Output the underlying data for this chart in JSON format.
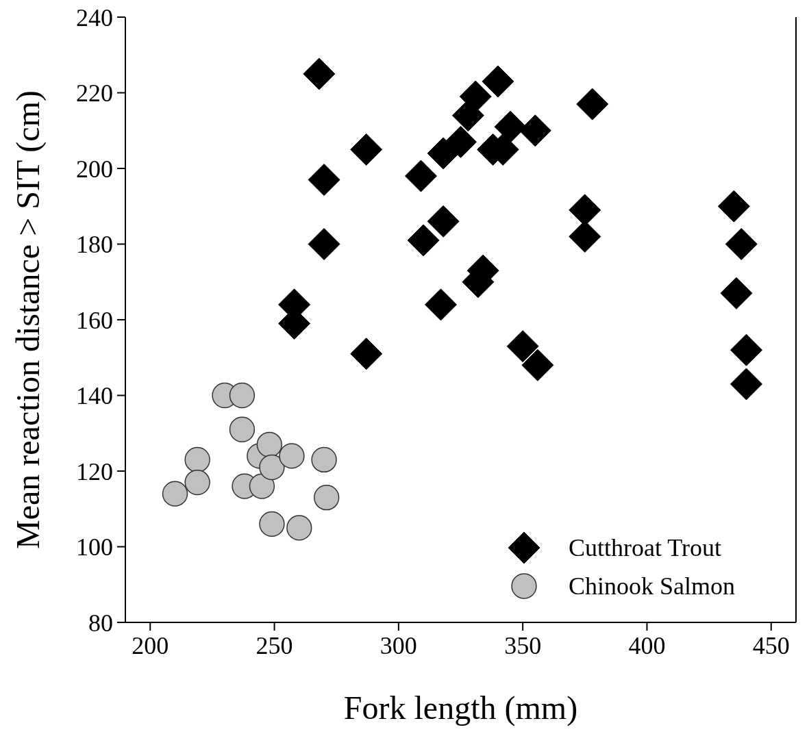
{
  "chart_data": {
    "type": "scatter",
    "xlabel": "Fork length (mm)",
    "ylabel": "Mean reaction distance > SIT (cm)",
    "xlim": [
      190,
      460
    ],
    "xticks": [
      200,
      250,
      300,
      350,
      400,
      450
    ],
    "ylim": [
      80,
      240
    ],
    "yticks": [
      80,
      100,
      120,
      140,
      160,
      180,
      200,
      220,
      240
    ],
    "grid": false,
    "legend": "bottom right",
    "series": [
      {
        "name": "Cutthroat Trout",
        "color": "#000000",
        "marker": "diamond",
        "x": [
          268,
          270,
          270,
          258,
          258,
          287,
          287,
          309,
          310,
          318,
          318,
          317,
          325,
          328,
          331,
          340,
          334,
          332,
          338,
          342,
          345,
          355,
          350,
          356,
          375,
          375,
          378,
          435,
          438,
          436,
          440,
          440
        ],
        "values": [
          225,
          197,
          180,
          164,
          159,
          205,
          151,
          198,
          181,
          204,
          186,
          164,
          207,
          214,
          219,
          223,
          173,
          170,
          205,
          205,
          211,
          210,
          153,
          148,
          189,
          182,
          217,
          190,
          180,
          167,
          152,
          143
        ]
      },
      {
        "name": "Chinook Salmon",
        "color": "#c0c0c0",
        "marker": "circle",
        "x": [
          210,
          219,
          219,
          230,
          237,
          237,
          238,
          244,
          245,
          248,
          249,
          249,
          257,
          260,
          270,
          271
        ],
        "values": [
          114,
          123,
          117,
          140,
          140,
          131,
          116,
          124,
          116,
          127,
          121,
          106,
          124,
          105,
          123,
          113
        ]
      }
    ]
  }
}
